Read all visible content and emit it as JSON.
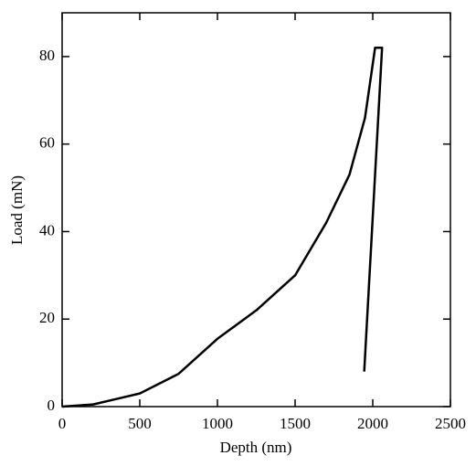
{
  "chart_data": {
    "type": "line",
    "x_label": "Depth (nm)",
    "y_label": "Load (mN)",
    "series": [
      {
        "color": "#000000",
        "x": [
          0,
          200,
          500,
          750,
          1000,
          1250,
          1500,
          1700,
          1850,
          1950,
          2015,
          2060,
          1945
        ],
        "values": [
          0,
          0.5,
          3,
          7.5,
          15.5,
          22,
          30,
          42,
          53,
          66,
          82,
          82,
          8
        ]
      }
    ],
    "xlim": [
      0,
      2500
    ],
    "xticks": [
      0,
      500,
      1000,
      1500,
      2000,
      2500
    ],
    "ylim": [
      0,
      90
    ],
    "yticks": [
      0,
      20,
      40,
      60,
      80
    ]
  }
}
